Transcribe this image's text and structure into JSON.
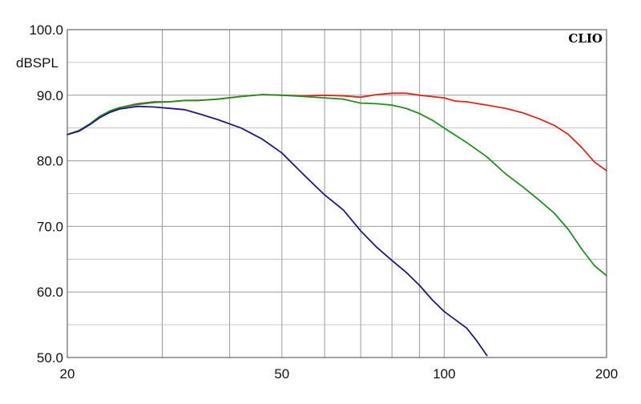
{
  "chart_data": {
    "type": "line",
    "brand": "CLIO",
    "xlabel": "",
    "ylabel": "dBSPL",
    "xscale": "log",
    "xlim": [
      20,
      200
    ],
    "ylim": [
      50,
      100
    ],
    "grid": true,
    "x_tick_labels": [
      {
        "value": 20,
        "label": "20"
      },
      {
        "value": 50,
        "label": "50"
      },
      {
        "value": 100,
        "label": "100"
      },
      {
        "value": 200,
        "label": "200"
      }
    ],
    "x_grid_values": [
      30,
      40,
      50,
      60,
      70,
      80,
      90,
      100
    ],
    "y_tick_labels": [
      {
        "value": 100,
        "label": "100.0"
      },
      {
        "value": 90,
        "label": "90.0"
      },
      {
        "value": 80,
        "label": "80.0"
      },
      {
        "value": 70,
        "label": "70.0"
      },
      {
        "value": 60,
        "label": "60.0"
      },
      {
        "value": 50,
        "label": "50.0"
      }
    ],
    "y_minor_grid": [
      95,
      85,
      75,
      65,
      55
    ],
    "series": [
      {
        "color": "#d42b1e",
        "points": [
          [
            20,
            84.0
          ],
          [
            21,
            84.6
          ],
          [
            22,
            85.6
          ],
          [
            23,
            86.8
          ],
          [
            24,
            87.6
          ],
          [
            25,
            88.1
          ],
          [
            27,
            88.7
          ],
          [
            29,
            89.0
          ],
          [
            31,
            89.0
          ],
          [
            33,
            89.2
          ],
          [
            35,
            89.2
          ],
          [
            38,
            89.4
          ],
          [
            42,
            89.8
          ],
          [
            46,
            90.1
          ],
          [
            50,
            90.0
          ],
          [
            55,
            89.9
          ],
          [
            60,
            90.0
          ],
          [
            65,
            89.9
          ],
          [
            70,
            89.7
          ],
          [
            75,
            90.1
          ],
          [
            80,
            90.3
          ],
          [
            85,
            90.3
          ],
          [
            90,
            90.0
          ],
          [
            100,
            89.6
          ],
          [
            105,
            89.1
          ],
          [
            110,
            89.0
          ],
          [
            120,
            88.5
          ],
          [
            130,
            88.0
          ],
          [
            140,
            87.3
          ],
          [
            150,
            86.4
          ],
          [
            160,
            85.4
          ],
          [
            170,
            84.0
          ],
          [
            180,
            82.0
          ],
          [
            190,
            79.8
          ],
          [
            200,
            78.5
          ]
        ]
      },
      {
        "color": "#238c23",
        "points": [
          [
            20,
            84.0
          ],
          [
            21,
            84.6
          ],
          [
            22,
            85.6
          ],
          [
            23,
            86.8
          ],
          [
            24,
            87.6
          ],
          [
            25,
            88.1
          ],
          [
            27,
            88.6
          ],
          [
            29,
            88.9
          ],
          [
            31,
            89.0
          ],
          [
            33,
            89.2
          ],
          [
            35,
            89.2
          ],
          [
            38,
            89.4
          ],
          [
            42,
            89.8
          ],
          [
            46,
            90.1
          ],
          [
            50,
            90.0
          ],
          [
            55,
            89.8
          ],
          [
            60,
            89.6
          ],
          [
            65,
            89.4
          ],
          [
            70,
            88.8
          ],
          [
            75,
            88.7
          ],
          [
            80,
            88.5
          ],
          [
            85,
            88.0
          ],
          [
            90,
            87.2
          ],
          [
            95,
            86.2
          ],
          [
            100,
            85.0
          ],
          [
            110,
            82.8
          ],
          [
            120,
            80.6
          ],
          [
            130,
            78.0
          ],
          [
            140,
            76.0
          ],
          [
            150,
            74.0
          ],
          [
            160,
            72.0
          ],
          [
            170,
            69.5
          ],
          [
            180,
            66.5
          ],
          [
            190,
            64.0
          ],
          [
            200,
            62.5
          ]
        ]
      },
      {
        "color": "#1e1a78",
        "points": [
          [
            20,
            84.0
          ],
          [
            21,
            84.5
          ],
          [
            22,
            85.5
          ],
          [
            23,
            86.6
          ],
          [
            24,
            87.4
          ],
          [
            25,
            87.9
          ],
          [
            27,
            88.3
          ],
          [
            29,
            88.2
          ],
          [
            31,
            88.0
          ],
          [
            33,
            87.8
          ],
          [
            35,
            87.2
          ],
          [
            38,
            86.3
          ],
          [
            42,
            85.0
          ],
          [
            46,
            83.3
          ],
          [
            50,
            81.2
          ],
          [
            55,
            77.8
          ],
          [
            60,
            74.8
          ],
          [
            65,
            72.5
          ],
          [
            70,
            69.3
          ],
          [
            75,
            66.8
          ],
          [
            80,
            64.8
          ],
          [
            85,
            63.0
          ],
          [
            90,
            61.0
          ],
          [
            95,
            58.8
          ],
          [
            100,
            57.0
          ],
          [
            110,
            54.5
          ],
          [
            115,
            52.5
          ],
          [
            120,
            50.3
          ]
        ]
      }
    ]
  }
}
